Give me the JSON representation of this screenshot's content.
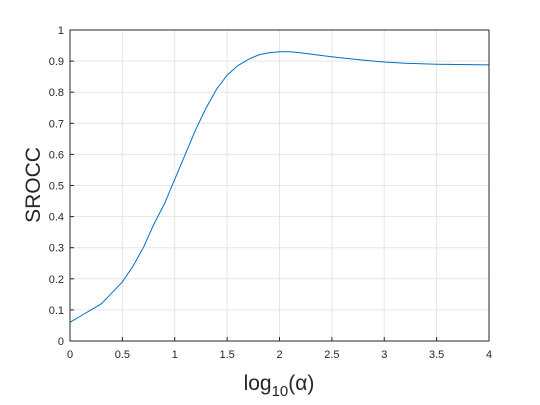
{
  "chart_data": {
    "type": "line",
    "xlabel": {
      "base": "log",
      "subscript": "10",
      "argument": "(α)"
    },
    "ylabel": "SROCC",
    "x": [
      0,
      0.1,
      0.2,
      0.3,
      0.4,
      0.5,
      0.6,
      0.7,
      0.8,
      0.9,
      1.0,
      1.1,
      1.2,
      1.3,
      1.4,
      1.5,
      1.6,
      1.7,
      1.8,
      1.9,
      2.0,
      2.1,
      2.2,
      2.4,
      2.6,
      2.8,
      3.0,
      3.2,
      3.5,
      4.0
    ],
    "series": [
      {
        "color": "#0072bd",
        "values": [
          0.06,
          0.08,
          0.1,
          0.12,
          0.155,
          0.19,
          0.24,
          0.3,
          0.375,
          0.44,
          0.52,
          0.6,
          0.68,
          0.75,
          0.81,
          0.855,
          0.885,
          0.905,
          0.92,
          0.927,
          0.93,
          0.93,
          0.927,
          0.918,
          0.91,
          0.903,
          0.897,
          0.893,
          0.89,
          0.888
        ]
      }
    ],
    "xlim": [
      0,
      4
    ],
    "xticks": [
      0,
      0.5,
      1,
      1.5,
      2,
      2.5,
      3,
      3.5,
      4
    ],
    "ylim": [
      0,
      1
    ],
    "yticks": [
      0,
      0.1,
      0.2,
      0.3,
      0.4,
      0.5,
      0.6,
      0.7,
      0.8,
      0.9,
      1
    ],
    "grid": true
  }
}
